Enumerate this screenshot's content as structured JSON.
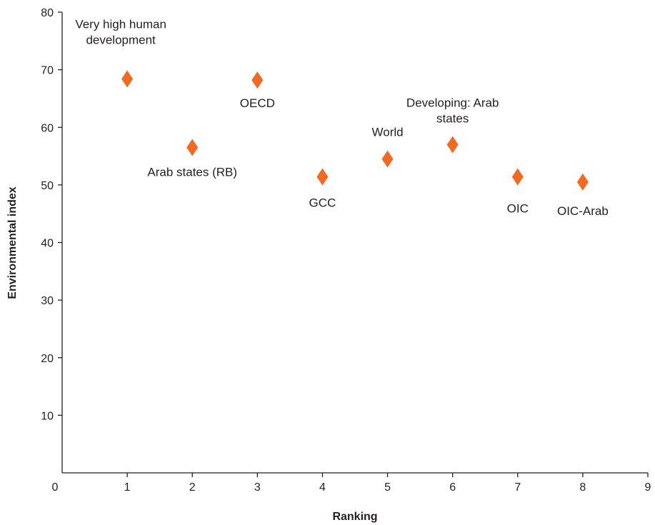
{
  "chart_data": {
    "type": "scatter",
    "title": "",
    "xlabel": "Ranking",
    "ylabel": "Environmental index",
    "xlim": [
      0,
      9
    ],
    "ylim": [
      0,
      80
    ],
    "x_ticks": [
      "0",
      "1",
      "2",
      "3",
      "4",
      "5",
      "6",
      "7",
      "8",
      "9"
    ],
    "y_ticks": [
      "10",
      "20",
      "30",
      "40",
      "50",
      "60",
      "70",
      "80"
    ],
    "grid": false,
    "marker": "diamond",
    "marker_color": "#f26a21",
    "points": [
      {
        "x": 1,
        "y": 68.4,
        "label_lines": [
          "Very high human",
          "development"
        ]
      },
      {
        "x": 2,
        "y": 56.5,
        "label_lines": [
          "Arab states (RB)"
        ]
      },
      {
        "x": 3,
        "y": 68.2,
        "label_lines": [
          "OECD"
        ]
      },
      {
        "x": 4,
        "y": 51.4,
        "label_lines": [
          "GCC"
        ]
      },
      {
        "x": 5,
        "y": 54.5,
        "label_lines": [
          "World"
        ]
      },
      {
        "x": 6,
        "y": 57.0,
        "label_lines": [
          "Developing: Arab",
          "states"
        ]
      },
      {
        "x": 7,
        "y": 51.4,
        "label_lines": [
          "OIC"
        ]
      },
      {
        "x": 8,
        "y": 50.5,
        "label_lines": [
          "OIC-Arab"
        ]
      }
    ]
  }
}
